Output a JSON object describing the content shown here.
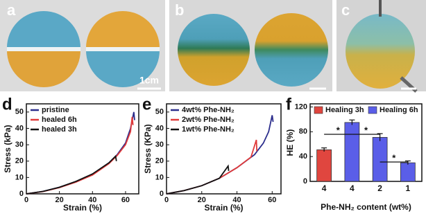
{
  "photos": [
    {
      "label": "a",
      "scale_label": "1cm"
    },
    {
      "label": "b"
    },
    {
      "label": "c"
    }
  ],
  "chart_data": [
    {
      "type": "line",
      "panel": "d",
      "xlabel": "Strain (%)",
      "ylabel": "Stress (kPa)",
      "xlim": [
        0,
        68
      ],
      "xticks": [
        0,
        20,
        40,
        60
      ],
      "ylim": [
        0,
        55
      ],
      "yticks": [
        0,
        10,
        20,
        30,
        40,
        50
      ],
      "series": [
        {
          "name": "pristine",
          "color": "#2b2d8c",
          "x": [
            0,
            10,
            20,
            30,
            40,
            50,
            55,
            60,
            63,
            65,
            65.5
          ],
          "values": [
            0,
            1.5,
            4,
            7.5,
            12,
            19,
            24,
            31,
            40,
            50,
            45
          ]
        },
        {
          "name": "healed 6h",
          "color": "#e03a3a",
          "x": [
            0,
            10,
            20,
            30,
            40,
            50,
            55,
            60,
            63,
            64,
            64.5
          ],
          "values": [
            0,
            1.4,
            3.8,
            7.2,
            11.5,
            18.5,
            23.5,
            30,
            38,
            47,
            42
          ]
        },
        {
          "name": "healed 3h",
          "color": "#111111",
          "x": [
            0,
            10,
            20,
            30,
            40,
            50,
            54,
            54.5
          ],
          "values": [
            0,
            1.5,
            4,
            7.6,
            12.2,
            19,
            23,
            20
          ]
        }
      ]
    },
    {
      "type": "line",
      "panel": "e",
      "xlabel": "Strain (%)",
      "ylabel": "Stress (KPa)",
      "xlim": [
        0,
        65
      ],
      "xticks": [
        0,
        20,
        40,
        60
      ],
      "ylim": [
        0,
        55
      ],
      "yticks": [
        0,
        10,
        20,
        30,
        40,
        50
      ],
      "series": [
        {
          "name": "4wt% Phe-NH₂",
          "color": "#2b2d8c",
          "x": [
            0,
            10,
            20,
            30,
            40,
            50,
            55,
            58,
            60,
            60.5
          ],
          "values": [
            0,
            2,
            5,
            9.5,
            16,
            24,
            31,
            38,
            48,
            44
          ]
        },
        {
          "name": "2wt% Phe-NH₂",
          "color": "#e03a3a",
          "x": [
            0,
            10,
            20,
            30,
            40,
            48,
            51,
            51.3
          ],
          "values": [
            0,
            2,
            5,
            9.5,
            16,
            22.5,
            33,
            26
          ]
        },
        {
          "name": "1wt% Phe-NH₂",
          "color": "#111111",
          "x": [
            0,
            10,
            20,
            30,
            35,
            35.3
          ],
          "values": [
            0,
            2,
            5,
            9.5,
            17,
            14
          ]
        }
      ]
    },
    {
      "type": "bar",
      "panel": "f",
      "xlabel": "Phe-NH₂ content (wt%)",
      "ylabel": "HE (%)",
      "categories": [
        "4",
        "4",
        "2",
        "1"
      ],
      "ylim": [
        0,
        125
      ],
      "yticks": [
        0,
        40,
        80,
        120
      ],
      "series": [
        {
          "name": "Healing 3h",
          "color": "#e0463f",
          "values": [
            51,
            null,
            null,
            null
          ],
          "errors": [
            3,
            null,
            null,
            null
          ]
        },
        {
          "name": "Healing 6h",
          "color": "#5a5ee8",
          "values": [
            null,
            95,
            71,
            30
          ],
          "errors": [
            null,
            4,
            6,
            3
          ]
        }
      ],
      "annotations": [
        {
          "text": "*"
        },
        {
          "text": "*"
        },
        {
          "text": "*"
        }
      ]
    }
  ]
}
